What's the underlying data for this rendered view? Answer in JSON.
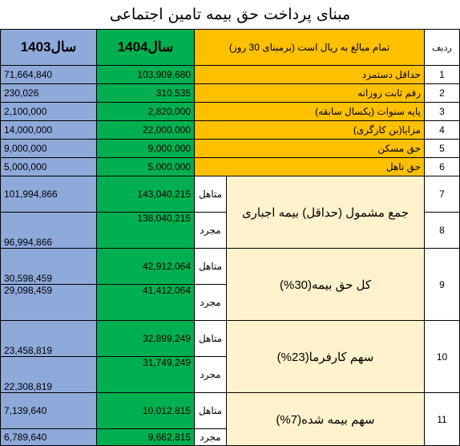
{
  "title": "مبنای پرداخت حق بیمه تامین اجتماعی",
  "headers": {
    "y1403": "سال1403",
    "y1404": "سال1404",
    "desc": "تمام مبالغ به ریال است (برمبنای 30 روز)",
    "row": "ردیف"
  },
  "simple_rows": [
    {
      "n": "1",
      "desc": "حداقل دستمزد",
      "v1404": "103,909,680",
      "v1403": "71,664,840"
    },
    {
      "n": "2",
      "desc": "رقم ثابت روزانه",
      "v1404": "310,535",
      "v1403": "230,026"
    },
    {
      "n": "3",
      "desc": "پایه سنوات (یکسال سابقه)",
      "v1404": "2,820,000",
      "v1403": "2,100,000"
    },
    {
      "n": "4",
      "desc": "مزایا(بن کارگری)",
      "v1404": "22,000,000",
      "v1403": "14,000,000"
    },
    {
      "n": "5",
      "desc": "حق مسکن",
      "v1404": "9,000,000",
      "v1403": "9,000,000"
    },
    {
      "n": "6",
      "desc": "حق تاهل",
      "v1404": "5,000,000",
      "v1403": "5,000,000"
    }
  ],
  "labels": {
    "married": "متاهل",
    "single": "مجرد"
  },
  "groups": [
    {
      "desc": "جمع مشمول (حداقل) بیمه اجباری",
      "n_married": "7",
      "n_single": "8",
      "married_1404": "143,040,215",
      "single_1404": "138,040,215",
      "married_1403": "101,994,866",
      "single_1403": "96,994,866"
    },
    {
      "desc": "کل حق بیمه(30%)",
      "n": "9",
      "married_1404": "42,912,064",
      "single_1404": "41,412,064",
      "married_1403": "30,598,459",
      "single_1403": "29,098,459"
    },
    {
      "desc": "سهم کارفرما(23%)",
      "n": "10",
      "married_1404": "32,899,249",
      "single_1404": "31,749,249",
      "married_1403": "23,458,819",
      "single_1403": "22,308,819"
    },
    {
      "desc": "سهم بیمه شده(7%)",
      "n": "11",
      "married_1404": "10,012,815",
      "single_1404": "9,662,815",
      "married_1403": "7,139,640",
      "single_1403": "6,789,640"
    }
  ]
}
